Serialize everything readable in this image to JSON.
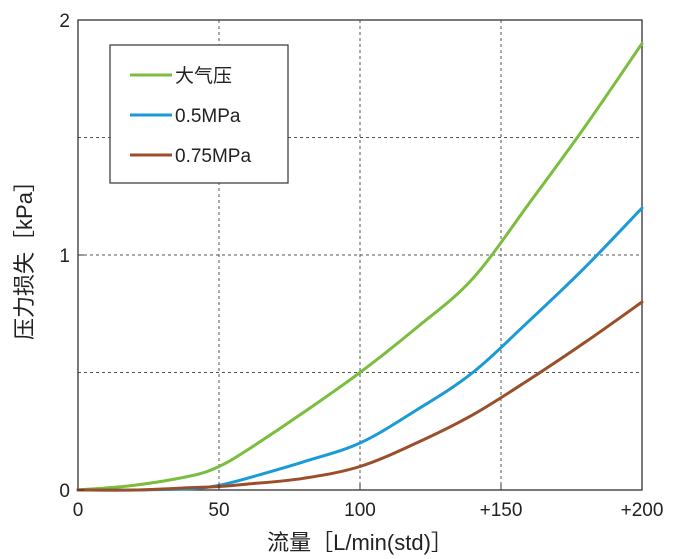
{
  "chart_data": {
    "type": "line",
    "title": "",
    "xlabel": "流量［L/min(std)］",
    "ylabel": "压力损失［kPa］",
    "xlim": [
      0,
      200
    ],
    "ylim": [
      0,
      2
    ],
    "x_ticks": [
      {
        "value": 0,
        "label": "0"
      },
      {
        "value": 50,
        "label": "50"
      },
      {
        "value": 100,
        "label": "100"
      },
      {
        "value": 150,
        "label": "+150"
      },
      {
        "value": 200,
        "label": "+200"
      }
    ],
    "y_ticks": [
      {
        "value": 0,
        "label": "0"
      },
      {
        "value": 1,
        "label": "1"
      },
      {
        "value": 2,
        "label": "2"
      }
    ],
    "grid": true,
    "legend": "top-left",
    "series": [
      {
        "name": "大气压",
        "color": "#7bbd3e",
        "x": [
          0,
          20,
          40,
          50,
          60,
          80,
          100,
          120,
          140,
          160,
          180,
          200
        ],
        "y": [
          0.0,
          0.02,
          0.06,
          0.1,
          0.17,
          0.33,
          0.5,
          0.69,
          0.9,
          1.22,
          1.55,
          1.9
        ]
      },
      {
        "name": "0.5MPa",
        "color": "#1a9ad6",
        "x": [
          0,
          20,
          40,
          50,
          60,
          80,
          100,
          120,
          140,
          160,
          180,
          200
        ],
        "y": [
          0.0,
          0.0,
          0.005,
          0.02,
          0.05,
          0.12,
          0.2,
          0.34,
          0.5,
          0.72,
          0.95,
          1.2
        ]
      },
      {
        "name": "0.75MPa",
        "color": "#9a4e2a",
        "x": [
          0,
          20,
          40,
          50,
          60,
          80,
          100,
          120,
          140,
          160,
          180,
          200
        ],
        "y": [
          0.0,
          0.0,
          0.01,
          0.015,
          0.025,
          0.05,
          0.1,
          0.2,
          0.32,
          0.47,
          0.63,
          0.8
        ]
      }
    ]
  }
}
